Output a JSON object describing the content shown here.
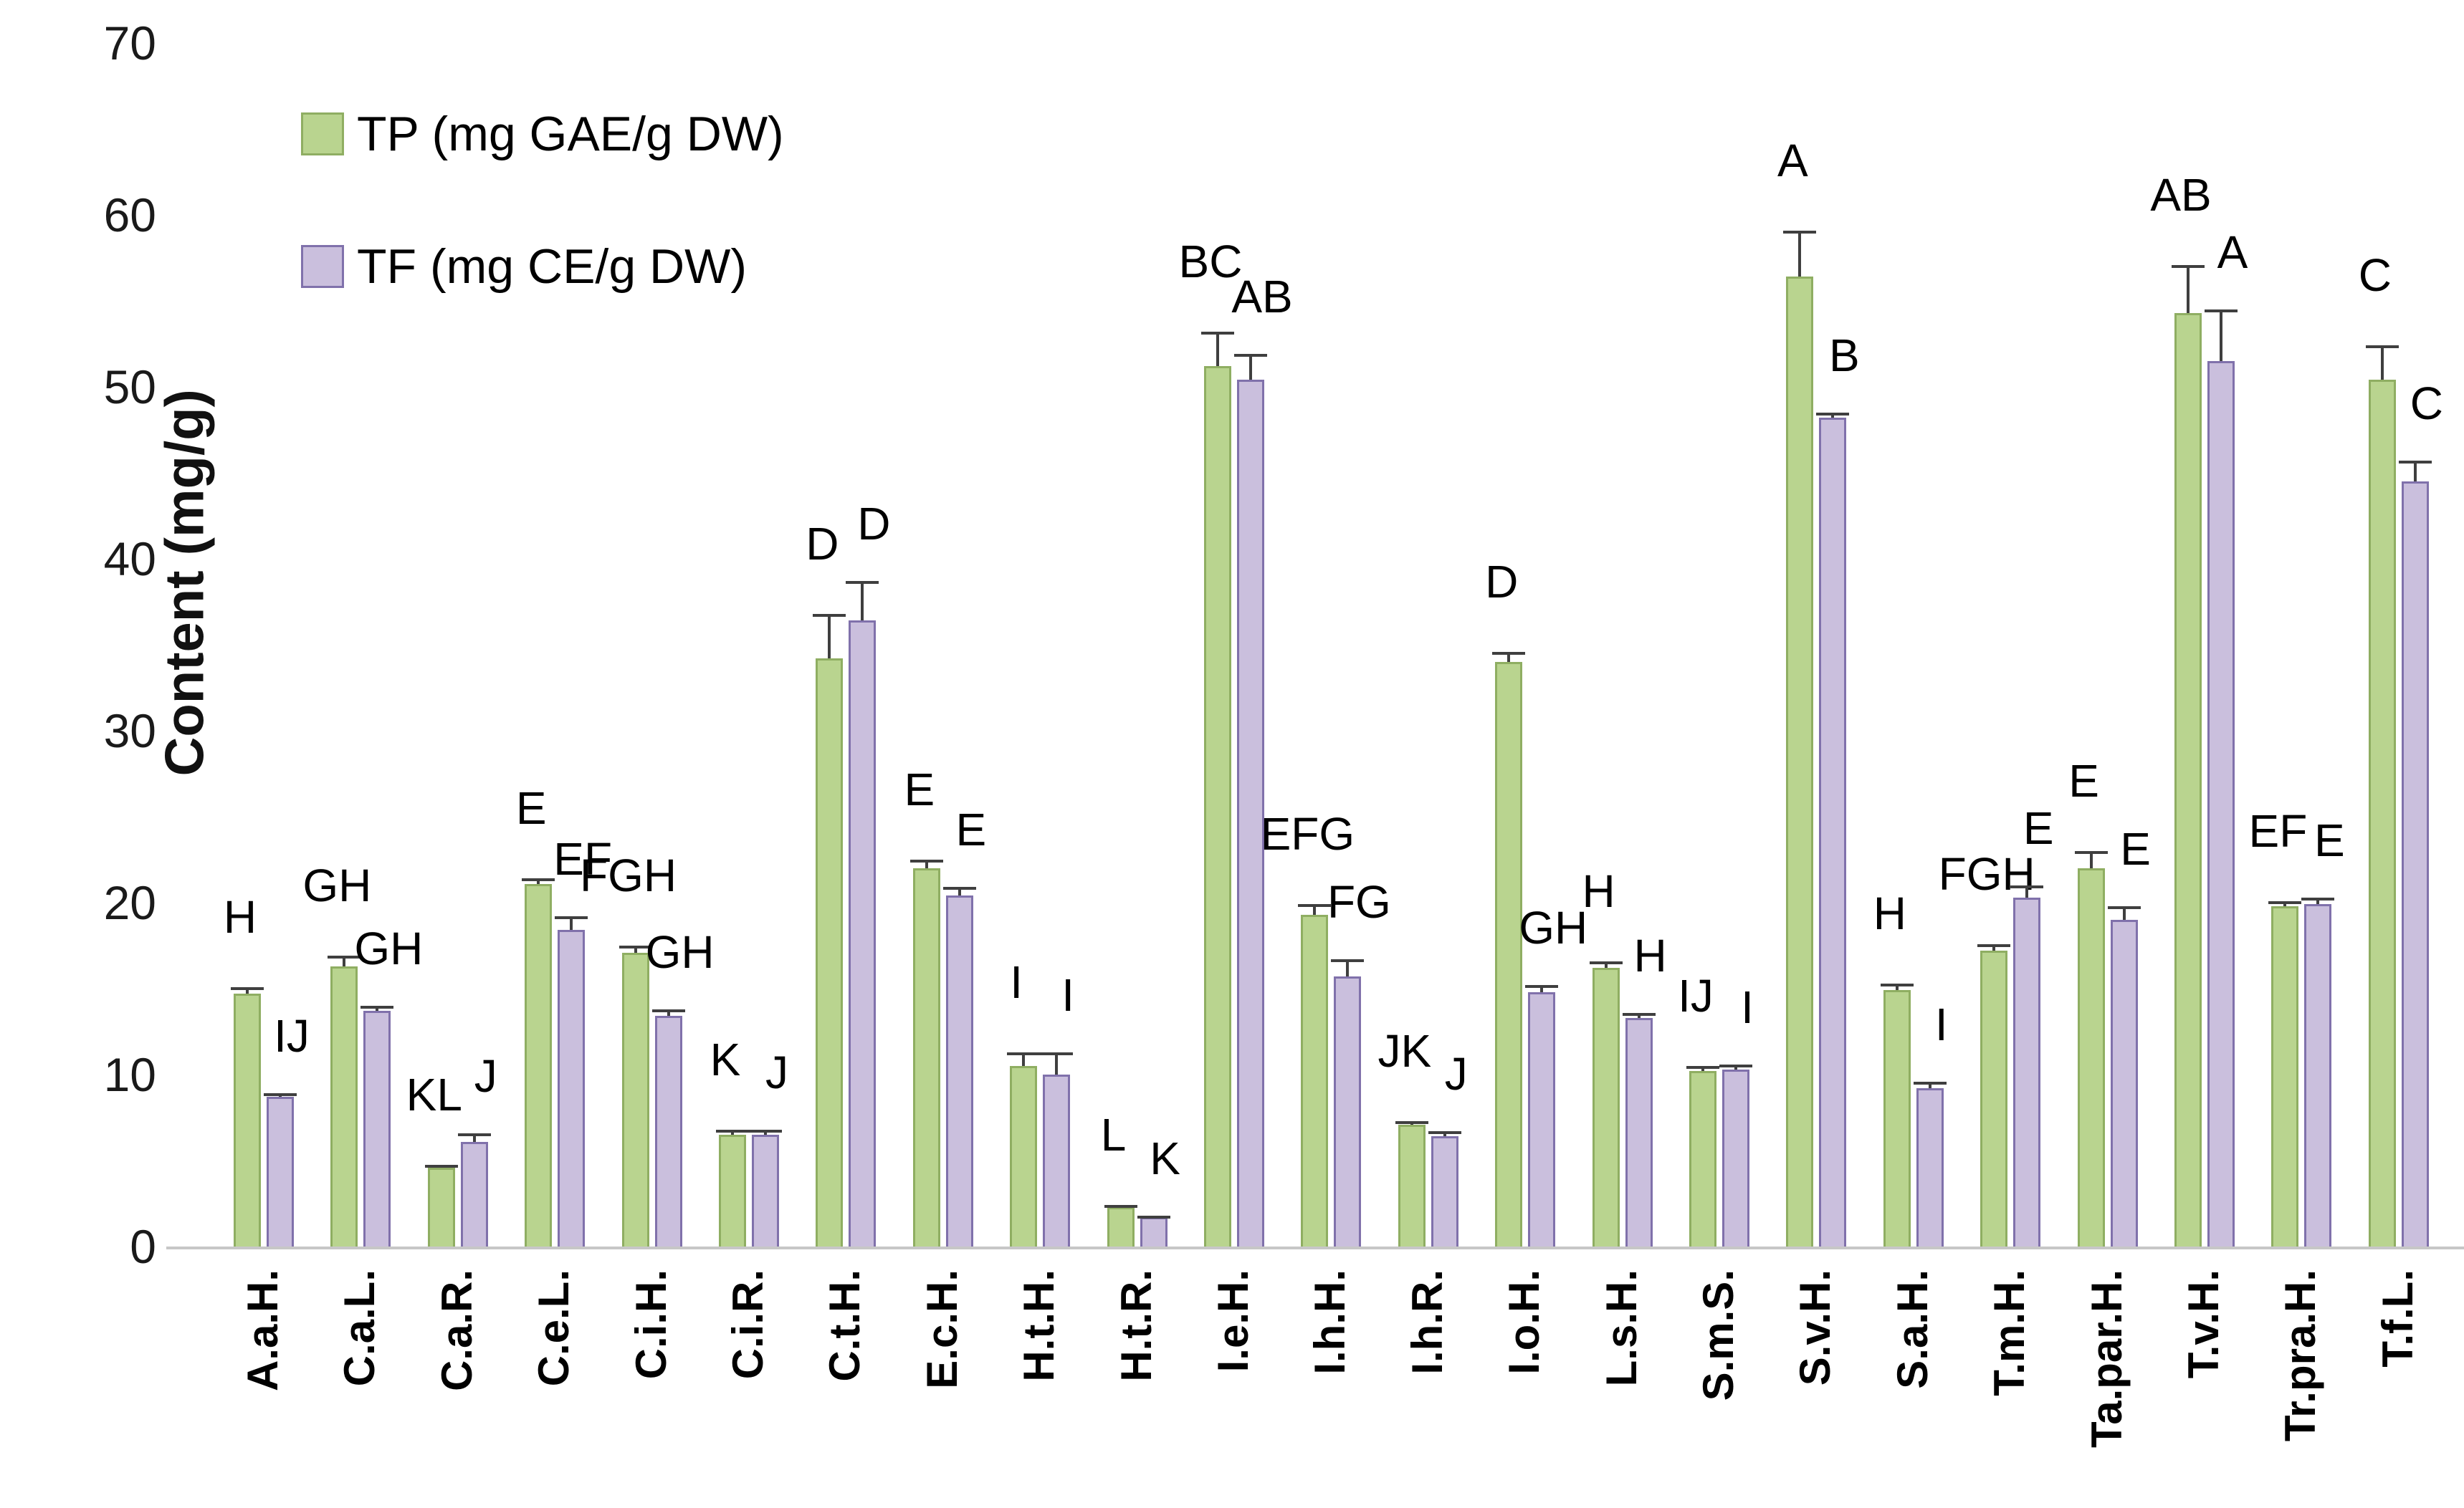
{
  "colors": {
    "tp_fill": "#b9d48f",
    "tp_border": "#8fae62",
    "tf_fill": "#cabfdd",
    "tf_border": "#8071ab",
    "error_bar": "#3f3f3f",
    "axis_line": "#c7c7c7",
    "text": "#000000"
  },
  "legend": {
    "tp_label": "TP (mg GAE/g DW)",
    "tf_label": "TF (mg CE/g DW)"
  },
  "chart_data": {
    "type": "bar",
    "title": "",
    "xlabel": "",
    "ylabel": "Content (mg/g)",
    "ylim": [
      0,
      70
    ],
    "ytick_step": 10,
    "grid": false,
    "legend_position": "top-left",
    "categories": [
      "A.a.H.",
      "C.a.L.",
      "C.a.R.",
      "C.e.L.",
      "C.i.H.",
      "C.i.R.",
      "C.t.H.",
      "E.c.H.",
      "H.t.H.",
      "H.t.R.",
      "I.e.H.",
      "I.h.H.",
      "I.h.R.",
      "I.o.H.",
      "L.s.H.",
      "S.m.S.",
      "S.v.H.",
      "S.a.H.",
      "T.m.H.",
      "Ta.par.H.",
      "T.v.H.",
      "Tr.pra.H.",
      "T.f.L."
    ],
    "series": [
      {
        "name": "TP (mg GAE/g DW)",
        "values": [
          14.7,
          16.3,
          4.6,
          21.1,
          17.1,
          6.5,
          34.2,
          22.0,
          10.5,
          2.3,
          51.2,
          19.3,
          7.1,
          34.0,
          16.2,
          10.2,
          56.4,
          14.9,
          17.2,
          22.0,
          54.3,
          19.8,
          50.4
        ],
        "errors": [
          0.4,
          0.6,
          0.15,
          0.3,
          0.4,
          0.3,
          2.6,
          0.5,
          0.8,
          0.1,
          2.0,
          0.6,
          0.2,
          0.6,
          0.4,
          0.3,
          2.7,
          0.4,
          0.4,
          1.0,
          2.8,
          0.3,
          2.0
        ],
        "letters": [
          "H",
          "GH",
          "KL",
          "E",
          "FGH",
          "K",
          "D",
          "E",
          "I",
          "L",
          "BC",
          "EFG",
          "JK",
          "D",
          "H",
          "IJ",
          "A",
          "H",
          "FGH",
          "E",
          "AB",
          "EF",
          "C"
        ]
      },
      {
        "name": "TF (mg CE/g DW)",
        "values": [
          8.7,
          13.7,
          6.1,
          18.4,
          13.4,
          6.5,
          36.4,
          20.4,
          10.0,
          1.7,
          50.4,
          15.7,
          6.4,
          14.8,
          13.3,
          10.3,
          48.2,
          9.2,
          20.3,
          19.0,
          51.5,
          19.9,
          44.5
        ],
        "errors": [
          0.2,
          0.3,
          0.5,
          0.8,
          0.4,
          0.3,
          2.3,
          0.5,
          1.3,
          0.1,
          1.5,
          1.0,
          0.3,
          0.4,
          0.3,
          0.3,
          0.3,
          0.4,
          0.7,
          0.8,
          3.0,
          0.4,
          1.2
        ],
        "letters": [
          "IJ",
          "GH",
          "J",
          "EF",
          "GH",
          "J",
          "D",
          "E",
          "I",
          "K",
          "AB",
          "FG",
          "J",
          "GH",
          "H",
          "I",
          "B",
          "I",
          "E",
          "E",
          "A",
          "E",
          "C"
        ]
      }
    ]
  }
}
